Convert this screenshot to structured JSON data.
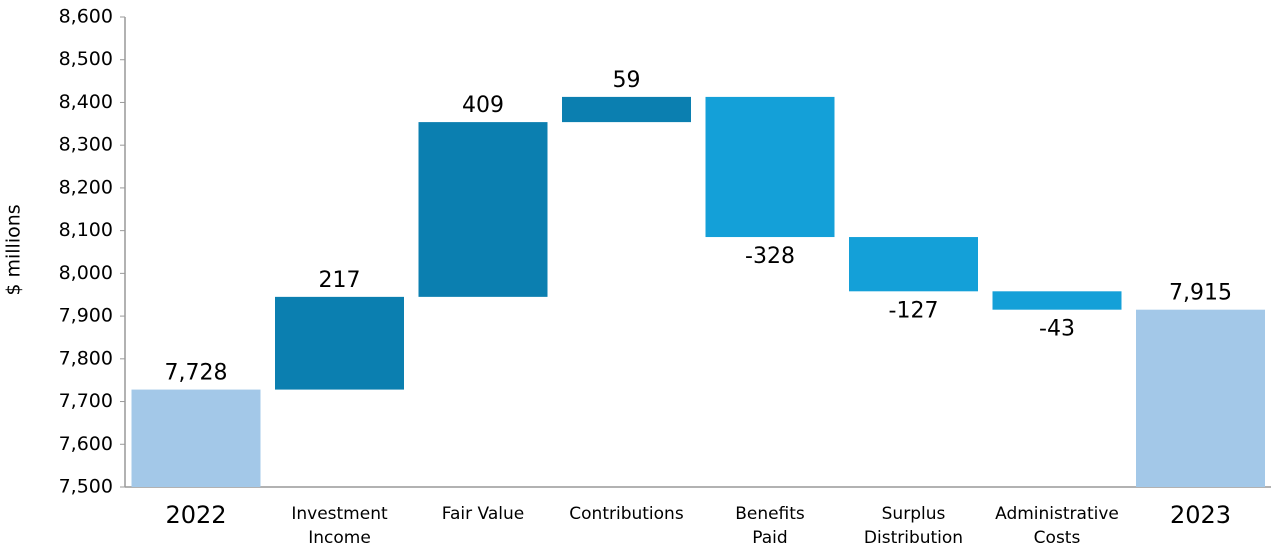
{
  "chart_data": {
    "type": "waterfall",
    "y_label": "$ millions",
    "categories": [
      "2022",
      "Investment\nIncome",
      "Fair Value",
      "Contributions",
      "Benefits\nPaid",
      "Surplus\nDistribution",
      "Administrative\nCosts",
      "2023"
    ],
    "values": [
      7728,
      217,
      409,
      59,
      -328,
      -127,
      -43,
      7915
    ],
    "value_labels": [
      "7,728",
      "217",
      "409",
      "59",
      "-328",
      "-127",
      "-43",
      "7,915"
    ],
    "is_total": [
      true,
      false,
      false,
      false,
      false,
      false,
      false,
      true
    ],
    "colors": {
      "total": "#a3c8e8",
      "increase": "#0b7fb0",
      "decrease": "#14a0d8"
    },
    "ylim": [
      7500,
      8600
    ],
    "yticks": [
      {
        "value": 7500,
        "label": "7,500"
      },
      {
        "value": 7600,
        "label": "7,600"
      },
      {
        "value": 7700,
        "label": "7,700"
      },
      {
        "value": 7800,
        "label": "7,800"
      },
      {
        "value": 7900,
        "label": "7,900"
      },
      {
        "value": 8000,
        "label": "8,000"
      },
      {
        "value": 8100,
        "label": "8,100"
      },
      {
        "value": 8200,
        "label": "8,200"
      },
      {
        "value": 8300,
        "label": "8,300"
      },
      {
        "value": 8400,
        "label": "8,400"
      },
      {
        "value": 8500,
        "label": "8,500"
      },
      {
        "value": 8600,
        "label": "8,600"
      }
    ],
    "grid": false
  }
}
